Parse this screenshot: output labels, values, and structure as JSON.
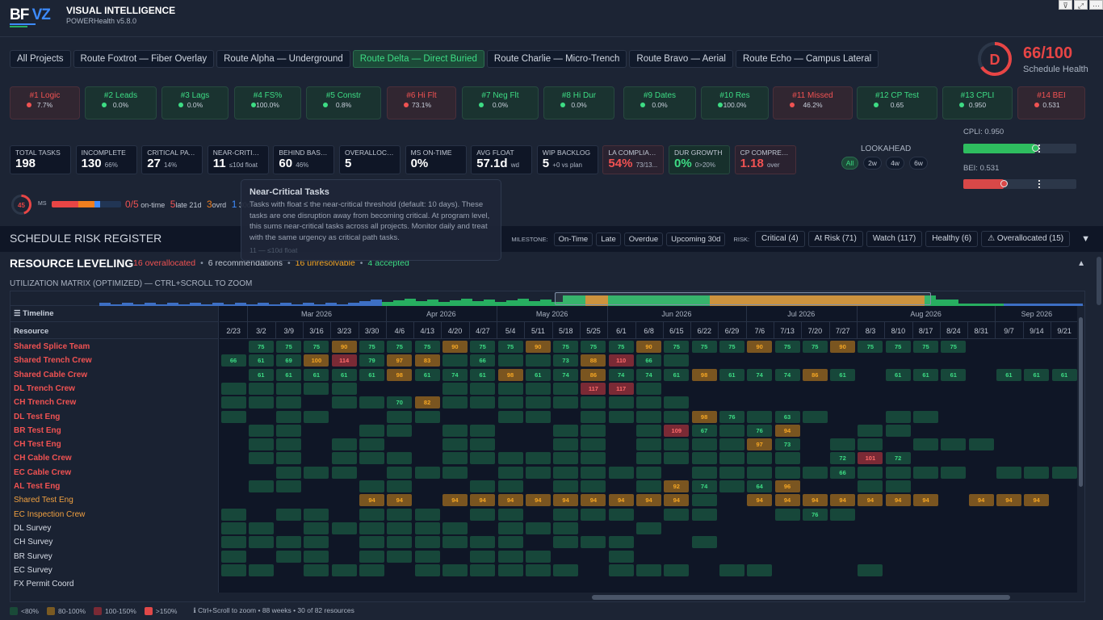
{
  "window_controls": [
    "filter-icon",
    "focus-mode-icon",
    "more-options-icon"
  ],
  "header": {
    "logo_left": "BF",
    "logo_right": "VZ",
    "title": "VISUAL INTELLIGENCE",
    "subtitle": "POWERHealth v5.8.0"
  },
  "tabs": [
    {
      "label": "All Projects",
      "active": false
    },
    {
      "label": "Route Foxtrot — Fiber Overlay",
      "active": false
    },
    {
      "label": "Route Alpha — Underground",
      "active": false
    },
    {
      "label": "Route Delta — Direct Buried",
      "active": true
    },
    {
      "label": "Route Charlie — Micro-Trench",
      "active": false
    },
    {
      "label": "Route Bravo — Aerial",
      "active": false
    },
    {
      "label": "Route Echo — Campus Lateral",
      "active": false
    }
  ],
  "health": {
    "grade": "D",
    "score": "66/100",
    "score_value": 66,
    "label": "Schedule Health",
    "color": "#e84545"
  },
  "checks": [
    {
      "name": "#1 Logic",
      "value": "7.7%",
      "status": "fail"
    },
    {
      "name": "#2 Leads",
      "value": "0.0%",
      "status": "pass"
    },
    {
      "name": "#3 Lags",
      "value": "0.0%",
      "status": "pass"
    },
    {
      "name": "#4 FS%",
      "value": "100.0%",
      "status": "pass"
    },
    {
      "name": "#5 Constr",
      "value": "0.8%",
      "status": "pass"
    },
    {
      "name": "#6 Hi Flt",
      "value": "73.1%",
      "status": "fail"
    },
    {
      "name": "#7 Neg Flt",
      "value": "0.0%",
      "status": "pass"
    },
    {
      "name": "#8 Hi Dur",
      "value": "0.0%",
      "status": "pass"
    },
    {
      "name": "#9 Dates",
      "value": "0.0%",
      "status": "pass"
    },
    {
      "name": "#10 Res",
      "value": "100.0%",
      "status": "pass"
    },
    {
      "name": "#11 Missed",
      "value": "46.2%",
      "status": "fail"
    },
    {
      "name": "#12 CP Test",
      "value": "0.65",
      "status": "pass"
    },
    {
      "name": "#13 CPLI",
      "value": "0.950",
      "status": "pass"
    },
    {
      "name": "#14 BEI",
      "value": "0.531",
      "status": "fail"
    }
  ],
  "kpis": [
    {
      "label": "TOTAL TASKS",
      "value": "198",
      "sub": "",
      "tone": "neutral"
    },
    {
      "label": "INCOMPLETE",
      "value": "130",
      "sub": "66%",
      "tone": "neutral"
    },
    {
      "label": "CRITICAL PATH",
      "value": "27",
      "sub": "14%",
      "tone": "neutral"
    },
    {
      "label": "NEAR-CRITICAL",
      "value": "11",
      "sub": "≤10d float",
      "tone": "neutral"
    },
    {
      "label": "BEHIND BASE...",
      "value": "60",
      "sub": "46%",
      "tone": "neutral"
    },
    {
      "label": "OVERALLOC R...",
      "value": "5",
      "sub": "",
      "tone": "neutral"
    },
    {
      "label": "MS ON-TIME",
      "value": "0%",
      "sub": "",
      "tone": "neutral"
    },
    {
      "label": "AVG FLOAT",
      "value": "57.1d",
      "sub": "wd",
      "tone": "neutral"
    },
    {
      "label": "WIP BACKLOG",
      "value": "5",
      "sub": "+0 vs plan",
      "tone": "neutral"
    },
    {
      "label": "LA COMPLIAN...",
      "value": "54%",
      "sub": "73/13...",
      "tone": "red"
    },
    {
      "label": "DUR GROWTH",
      "value": "0%",
      "sub": "0>20%",
      "tone": "green"
    },
    {
      "label": "CP COMPRESS",
      "value": "1.18",
      "sub": "over",
      "tone": "red"
    }
  ],
  "lookahead": {
    "label": "LOOKAHEAD",
    "options": [
      "All",
      "2w",
      "4w",
      "6w"
    ],
    "selected": "All"
  },
  "gauges": [
    {
      "label": "CPLI: 0.950",
      "value": 0.95,
      "color": "#2ebd5f"
    },
    {
      "label": "BEI: 0.531",
      "value": 0.531,
      "color": "#d94848"
    }
  ],
  "milestones": {
    "ring_value": "45",
    "label": "MS",
    "ontime": "0/5",
    "ontime_lbl": "on-time",
    "late": "5",
    "late_lbl": "late 21d",
    "overdue": "3",
    "overdue_lbl": "ovrd",
    "upcoming": "1",
    "upcoming_lbl": "30d",
    "bar": [
      {
        "count": 5,
        "color": "#e84545"
      },
      {
        "count": 3,
        "color": "#f07f1f"
      },
      {
        "count": 1,
        "color": "#3d8bfd"
      }
    ],
    "total": 13
  },
  "risk_register": {
    "title": "SCHEDULE RISK REGISTER",
    "milestone_label": "MILESTONE:",
    "milestone_filters": [
      "On-Time",
      "Late",
      "Overdue",
      "Upcoming 30d"
    ],
    "risk_label": "RISK:",
    "risk_filters": [
      "Critical (4)",
      "At Risk (71)",
      "Watch (117)",
      "Healthy (6)",
      "⚠ Overallocated (15)"
    ],
    "collapse_icon": "▼"
  },
  "tooltip": {
    "title": "Near-Critical Tasks",
    "body": "Tasks with float ≤ the near-critical threshold (default: 10 days). These tasks are one disruption away from becoming critical. At program level, this sums near-critical tasks across all projects. Monitor daily and treat with the same urgency as critical path tasks.",
    "footer": "11 — ≤10d float"
  },
  "leveling": {
    "title": "RESOURCE LEVELING",
    "overallocated": "16 overallocated",
    "recommendations": "6 recommendations",
    "unresolvable": "16 unresolvable",
    "accepted": "4 accepted",
    "collapse_icon": "▲",
    "matrix_label": "UTILIZATION MATRIX (OPTIMIZED) — CTRL+SCROLL TO ZOOM",
    "timeline_header": "☰ Timeline",
    "resource_header": "Resource",
    "months": [
      "Mar 2026",
      "Apr 2026",
      "May 2026",
      "Jun 2026",
      "Jul 2026",
      "Aug 2026",
      "Sep 2026"
    ],
    "weeks": [
      "2/23",
      "3/2",
      "3/9",
      "3/16",
      "3/23",
      "3/30",
      "4/6",
      "4/13",
      "4/20",
      "4/27",
      "5/4",
      "5/11",
      "5/18",
      "5/25",
      "6/1",
      "6/8",
      "6/15",
      "6/22",
      "6/29",
      "7/6",
      "7/13",
      "7/20",
      "7/27",
      "8/3",
      "8/10",
      "8/17",
      "8/24",
      "8/31",
      "9/7",
      "9/14",
      "9/21"
    ],
    "resources": [
      {
        "name": "Shared Splice Team",
        "status": "over",
        "cells": [
          null,
          75,
          75,
          75,
          90,
          75,
          75,
          75,
          90,
          75,
          75,
          90,
          75,
          75,
          75,
          90,
          75,
          75,
          75,
          90,
          75,
          75,
          90,
          75,
          75,
          75,
          75,
          null,
          null,
          null,
          null
        ]
      },
      {
        "name": "Shared Trench Crew",
        "status": "over",
        "cells": [
          66,
          61,
          69,
          100,
          114,
          79,
          97,
          83,
          "",
          66,
          "",
          "",
          73,
          88,
          110,
          66,
          "",
          null,
          null,
          null,
          null,
          null,
          null,
          null,
          null,
          null,
          null,
          null,
          null,
          null,
          null
        ]
      },
      {
        "name": "Shared Cable Crew",
        "status": "over",
        "cells": [
          null,
          61,
          61,
          61,
          61,
          61,
          98,
          61,
          74,
          61,
          98,
          61,
          74,
          86,
          74,
          74,
          61,
          98,
          61,
          74,
          74,
          86,
          61,
          null,
          61,
          61,
          61,
          null,
          61,
          61,
          61
        ]
      },
      {
        "name": "DL Trench Crew",
        "status": "over",
        "cells": [
          "",
          "",
          "",
          "",
          "",
          null,
          null,
          null,
          "",
          "",
          "",
          "",
          "",
          117,
          117,
          "",
          null,
          null,
          null,
          null,
          null,
          null,
          null,
          null,
          null,
          null,
          null,
          null,
          null,
          null,
          null
        ]
      },
      {
        "name": "CH Trench Crew",
        "status": "over",
        "cells": [
          "",
          "",
          "",
          null,
          "",
          "",
          70,
          82,
          "",
          "",
          "",
          "",
          "",
          "",
          "",
          "",
          "",
          null,
          null,
          null,
          null,
          null,
          null,
          null,
          null,
          null,
          null,
          null,
          null,
          null,
          null
        ]
      },
      {
        "name": "DL Test Eng",
        "status": "over",
        "cells": [
          "",
          null,
          "",
          "",
          null,
          null,
          "",
          "",
          null,
          null,
          "",
          "",
          null,
          "",
          "",
          "",
          "",
          98,
          76,
          "",
          63,
          "",
          null,
          null,
          "",
          "",
          null,
          null,
          null,
          null,
          null
        ]
      },
      {
        "name": "BR Test Eng",
        "status": "over",
        "cells": [
          null,
          "",
          "",
          null,
          null,
          "",
          "",
          null,
          "",
          "",
          null,
          null,
          "",
          "",
          null,
          "",
          109,
          67,
          "",
          76,
          94,
          null,
          null,
          "",
          "",
          null,
          null,
          null,
          null,
          null,
          null
        ]
      },
      {
        "name": "CH Test Eng",
        "status": "over",
        "cells": [
          null,
          "",
          "",
          null,
          "",
          "",
          null,
          null,
          "",
          "",
          null,
          null,
          "",
          "",
          null,
          "",
          "",
          "",
          "",
          97,
          73,
          null,
          "",
          "",
          null,
          "",
          "",
          "",
          null,
          null,
          null
        ]
      },
      {
        "name": "CH Cable Crew",
        "status": "over",
        "cells": [
          null,
          "",
          "",
          null,
          "",
          "",
          "",
          null,
          "",
          "",
          "",
          "",
          "",
          "",
          null,
          "",
          "",
          "",
          "",
          "",
          "",
          null,
          72,
          101,
          72,
          null,
          null,
          null,
          null,
          null,
          null
        ]
      },
      {
        "name": "EC Cable Crew",
        "status": "over",
        "cells": [
          null,
          null,
          "",
          "",
          "",
          null,
          "",
          "",
          "",
          null,
          "",
          "",
          "",
          "",
          "",
          "",
          null,
          "",
          "",
          "",
          "",
          "",
          66,
          "",
          "",
          "",
          "",
          null,
          "",
          "",
          ""
        ]
      },
      {
        "name": "AL Test Eng",
        "status": "over",
        "cells": [
          null,
          "",
          "",
          null,
          null,
          "",
          "",
          null,
          null,
          "",
          "",
          null,
          "",
          "",
          null,
          "",
          92,
          74,
          "",
          64,
          96,
          null,
          null,
          "",
          "",
          null,
          null,
          null,
          null,
          null,
          null
        ]
      },
      {
        "name": "Shared Test Eng",
        "status": "warn",
        "cells": [
          null,
          null,
          null,
          null,
          null,
          94,
          94,
          null,
          94,
          94,
          94,
          94,
          94,
          94,
          94,
          94,
          94,
          "",
          null,
          94,
          94,
          94,
          94,
          94,
          94,
          94,
          null,
          94,
          94,
          94,
          null
        ]
      },
      {
        "name": "EC Inspection Crew",
        "status": "warn",
        "cells": [
          "",
          null,
          "",
          "",
          null,
          "",
          "",
          "",
          null,
          "",
          "",
          null,
          "",
          "",
          "",
          null,
          "",
          "",
          null,
          null,
          "",
          76,
          "",
          null,
          null,
          null,
          null,
          null,
          null,
          null,
          null
        ]
      },
      {
        "name": "DL Survey",
        "status": "ok",
        "cells": [
          "",
          "",
          null,
          "",
          "",
          "",
          "",
          "",
          "",
          null,
          "",
          "",
          "",
          null,
          null,
          "",
          null,
          null,
          null,
          null,
          null,
          null,
          null,
          null,
          null,
          null,
          null,
          null,
          null,
          null,
          null
        ]
      },
      {
        "name": "CH Survey",
        "status": "ok",
        "cells": [
          "",
          "",
          "",
          "",
          null,
          "",
          "",
          "",
          "",
          "",
          "",
          null,
          "",
          "",
          "",
          null,
          null,
          "",
          null,
          null,
          null,
          null,
          null,
          null,
          null,
          null,
          null,
          null,
          null,
          null,
          null
        ]
      },
      {
        "name": "BR Survey",
        "status": "ok",
        "cells": [
          "",
          null,
          "",
          "",
          null,
          "",
          "",
          "",
          null,
          "",
          "",
          "",
          null,
          null,
          "",
          null,
          null,
          null,
          null,
          null,
          null,
          null,
          null,
          null,
          null,
          null,
          null,
          null,
          null,
          null,
          null
        ]
      },
      {
        "name": "EC Survey",
        "status": "ok",
        "cells": [
          "",
          "",
          null,
          "",
          "",
          "",
          null,
          "",
          "",
          "",
          "",
          "",
          "",
          null,
          "",
          "",
          "",
          null,
          "",
          "",
          null,
          null,
          null,
          "",
          null,
          null,
          null,
          null,
          null,
          null,
          null
        ]
      },
      {
        "name": "FX Permit Coord",
        "status": "ok",
        "cells": [
          null,
          null,
          null,
          null,
          null,
          null,
          null,
          null,
          null,
          null,
          null,
          null,
          null,
          null,
          null,
          null,
          null,
          null,
          null,
          null,
          null,
          null,
          null,
          null,
          null,
          null,
          null,
          null,
          null,
          null,
          null
        ]
      }
    ],
    "legend": [
      {
        "label": "<80%",
        "color": "#1a4a38"
      },
      {
        "label": "80-100%",
        "color": "#7a5a22"
      },
      {
        "label": "100-150%",
        "color": "#7a2a35"
      },
      {
        "label": ">150%",
        "color": "#e04848"
      }
    ],
    "footer_note": "ℹ Ctrl+Scroll to zoom • 88 weeks • 30 of 82 resources"
  },
  "colors": {
    "green": "#3ddc84",
    "amber": "#f5a623",
    "red": "#f05252",
    "bg": "#1c2434",
    "panel": "#0f1626"
  }
}
